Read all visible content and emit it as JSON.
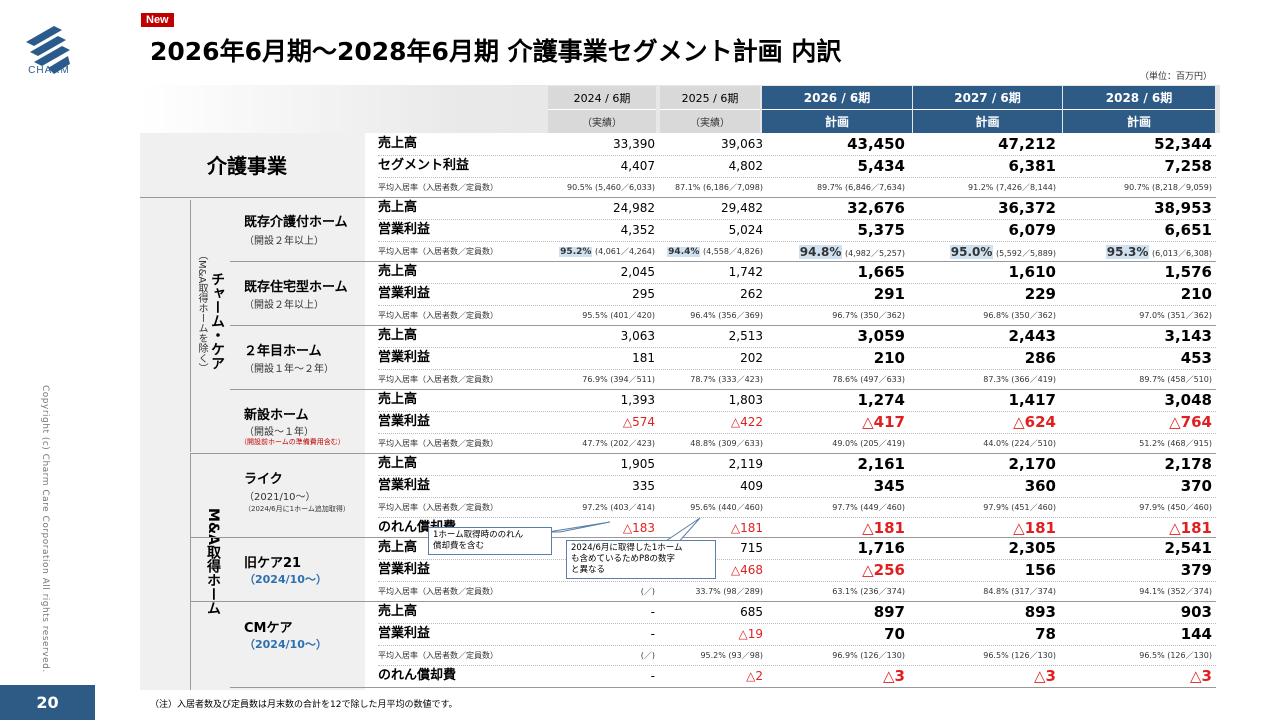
{
  "header": {
    "logo_text": "CHARM",
    "badge": "New",
    "title": "2026年6月期～2028年6月期 介護事業セグメント計画 内訳",
    "unit": "（単位：百万円）"
  },
  "columns": [
    {
      "period": "2024 / 6期",
      "type": "（実績）"
    },
    {
      "period": "2025 / 6期",
      "type": "（実績）"
    },
    {
      "period": "2026 / 6期",
      "type": "計画"
    },
    {
      "period": "2027 / 6期",
      "type": "計画"
    },
    {
      "period": "2028 / 6期",
      "type": "計画"
    }
  ],
  "labels": {
    "segment": "介護事業",
    "charm_group": "チャーム・ケア",
    "charm_group_note": "（M&A取得ホームを除く）",
    "ma_group": "M&A取得ホーム",
    "existing_care": "既存介護付ホーム",
    "existing_care_sub": "（開設２年以上）",
    "existing_housing": "既存住宅型ホーム",
    "existing_housing_sub": "（開設２年以上）",
    "second_year": "２年目ホーム",
    "second_year_sub": "（開設１年～２年）",
    "new_home": "新設ホーム",
    "new_home_sub": "（開設～１年）",
    "new_home_note": "（開設前ホームの準備費用含む）",
    "like": "ライク",
    "like_sub": "（2021/10～）",
    "like_note": "（2024/6月に1ホーム追加取得）",
    "old_care21": "旧ケア21",
    "old_care21_sub": "（2024/10～）",
    "cm_care": "CMケア",
    "cm_care_sub": "（2024/10～）"
  },
  "rows": [
    {
      "label": "売上高",
      "v": [
        "33,390",
        "39,063",
        "43,450",
        "47,212",
        "52,344"
      ]
    },
    {
      "label": "セグメント利益",
      "v": [
        "4,407",
        "4,802",
        "5,434",
        "6,381",
        "7,258"
      ]
    },
    {
      "label": "平均入居率（入居者数／定員数）",
      "small": true,
      "v": [
        "90.5% (5,460／6,033)",
        "87.1% (6,186／7,098)",
        "89.7% (6,846／7,634)",
        "91.2% (7,426／8,144)",
        "90.7% (8,218／9,059)"
      ]
    },
    {
      "label": "売上高",
      "v": [
        "24,982",
        "29,482",
        "32,676",
        "36,372",
        "38,953"
      ]
    },
    {
      "label": "営業利益",
      "v": [
        "4,352",
        "5,024",
        "5,375",
        "6,079",
        "6,651"
      ]
    },
    {
      "label": "平均入居率（入居者数／定員数）",
      "small": true,
      "hlrow": true,
      "hl": [
        "95.2%",
        "94.4%",
        "94.8%",
        "95.0%",
        "95.3%"
      ],
      "v": [
        " (4,061／4,264)",
        " (4,558／4,826)",
        " (4,982／5,257)",
        " (5,592／5,889)",
        " (6,013／6,308)"
      ]
    },
    {
      "label": "売上高",
      "v": [
        "2,045",
        "1,742",
        "1,665",
        "1,610",
        "1,576"
      ]
    },
    {
      "label": "営業利益",
      "v": [
        "295",
        "262",
        "291",
        "229",
        "210"
      ]
    },
    {
      "label": "平均入居率（入居者数／定員数）",
      "small": true,
      "v": [
        "95.5% (401／420)",
        "96.4% (356／369)",
        "96.7% (350／362)",
        "96.8% (350／362)",
        "97.0% (351／362)"
      ]
    },
    {
      "label": "売上高",
      "v": [
        "3,063",
        "2,513",
        "3,059",
        "2,443",
        "3,143"
      ]
    },
    {
      "label": "営業利益",
      "v": [
        "181",
        "202",
        "210",
        "286",
        "453"
      ]
    },
    {
      "label": "平均入居率（入居者数／定員数）",
      "small": true,
      "v": [
        "76.9% (394／511)",
        "78.7% (333／423)",
        "78.6% (497／633)",
        "87.3% (366／419)",
        "89.7% (458／510)"
      ]
    },
    {
      "label": "売上高",
      "v": [
        "1,393",
        "1,803",
        "1,274",
        "1,417",
        "3,048"
      ]
    },
    {
      "label": "営業利益",
      "neg": true,
      "v": [
        "△574",
        "△422",
        "△417",
        "△624",
        "△764"
      ]
    },
    {
      "label": "平均入居率（入居者数／定員数）",
      "small": true,
      "v": [
        "47.7% (202／423)",
        "48.8% (309／633)",
        "49.0% (205／419)",
        "44.0% (224／510)",
        "51.2% (468／915)"
      ]
    },
    {
      "label": "売上高",
      "v": [
        "1,905",
        "2,119",
        "2,161",
        "2,170",
        "2,178"
      ]
    },
    {
      "label": "営業利益",
      "v": [
        "335",
        "409",
        "345",
        "360",
        "370"
      ]
    },
    {
      "label": "平均入居率（入居者数／定員数）",
      "small": true,
      "v": [
        "97.2% (403／414)",
        "95.6% (440／460)",
        "97.7% (449／460)",
        "97.9% (451／460)",
        "97.9% (450／460)"
      ]
    },
    {
      "label": "のれん償却費",
      "neg": true,
      "v": [
        "△183",
        "△181",
        "△181",
        "△181",
        "△181"
      ]
    },
    {
      "label": "売上高",
      "v": [
        "",
        "715",
        "1,716",
        "2,305",
        "2,541"
      ]
    },
    {
      "label": "営業利益",
      "negcols": [
        1,
        2
      ],
      "v": [
        "-",
        "△468",
        "△256",
        "156",
        "379"
      ]
    },
    {
      "label": "平均入居率（入居者数／定員数）",
      "small": true,
      "v": [
        "(／)",
        "33.7% (98／289)",
        "63.1% (236／374)",
        "84.8% (317／374)",
        "94.1% (352／374)"
      ]
    },
    {
      "label": "売上高",
      "v": [
        "-",
        "685",
        "897",
        "893",
        "903"
      ]
    },
    {
      "label": "営業利益",
      "negcols": [
        1
      ],
      "v": [
        "-",
        "△19",
        "70",
        "78",
        "144"
      ]
    },
    {
      "label": "平均入居率（入居者数／定員数）",
      "small": true,
      "v": [
        "(／)",
        "95.2% (93／98)",
        "96.9% (126／130)",
        "96.5% (126／130)",
        "96.5% (126／130)"
      ]
    },
    {
      "label": "のれん償却費",
      "neg": true,
      "negcols": [
        1,
        2,
        3,
        4
      ],
      "v": [
        "-",
        "△2",
        "△3",
        "△3",
        "△3"
      ]
    }
  ],
  "callouts": {
    "goodwill": "1ホーム取得時ののれん\n償却費を含む",
    "old_care21": "2024/6月に取得した1ホーム\nも含めているためP8の数字\nと異なる"
  },
  "footer": {
    "page": "20",
    "note": "（注）入居者数及び定員数は月末数の合計を12で除した月平均の数値です。",
    "copyright": "Copyright (c) Charm Care Corporation All rights reserved."
  },
  "colors": {
    "brand": "#2e5b86",
    "negative": "#e02020",
    "highlight": "#cfe0f1"
  }
}
